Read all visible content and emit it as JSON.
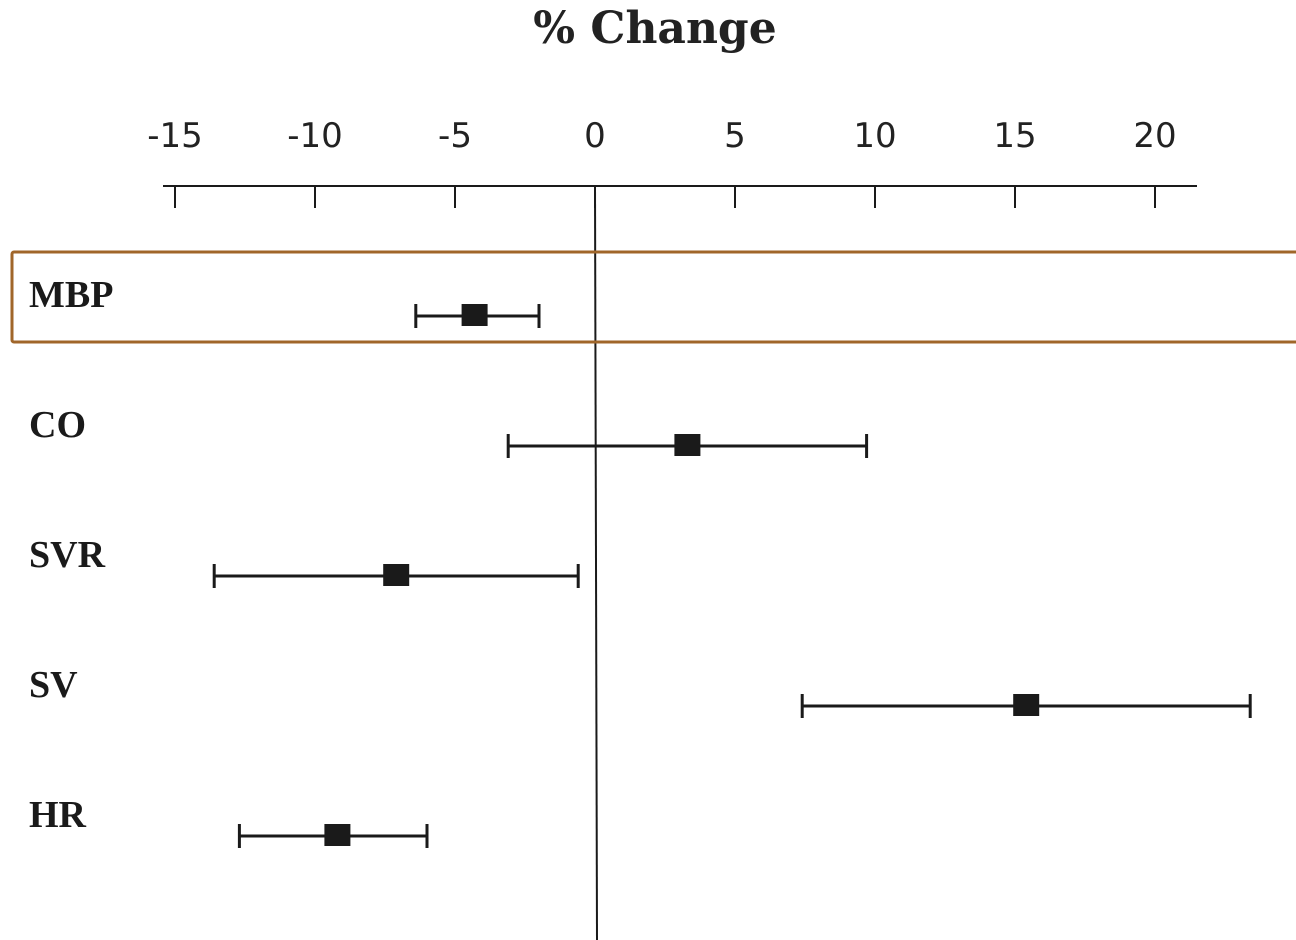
{
  "chart_data": {
    "type": "forest",
    "title": "% Change",
    "xlim": [
      -15,
      20
    ],
    "x_ticks": [
      -15,
      -10,
      -5,
      0,
      5,
      10,
      15,
      20
    ],
    "x_tick_labels": [
      "-15",
      "-10",
      "-5",
      "0",
      "5",
      "10",
      "15",
      "20"
    ],
    "reference_line": 0,
    "rows": [
      {
        "label": "MBP",
        "estimate": -4.3,
        "lower": -6.4,
        "upper": -2.0
      },
      {
        "label": "CO",
        "estimate": 3.3,
        "lower": -3.1,
        "upper": 9.7
      },
      {
        "label": "SVR",
        "estimate": -7.1,
        "lower": -13.6,
        "upper": -0.6
      },
      {
        "label": "SV",
        "estimate": 15.4,
        "lower": 7.4,
        "upper": 23.4
      },
      {
        "label": "HR",
        "estimate": -9.2,
        "lower": -12.7,
        "upper": -6.0
      }
    ],
    "highlighted_row": "MBP"
  },
  "colors": {
    "highlight_box": "#a0662a",
    "ink": "#1a1a1a"
  }
}
